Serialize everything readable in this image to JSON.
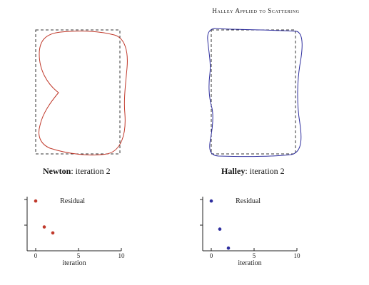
{
  "figure_title": "Halley Applied to Scattering",
  "colors": {
    "newton": "#c0392b",
    "halley": "#2e2e9e",
    "reference": "#333333",
    "axis": "#222222"
  },
  "panels": [
    {
      "method": "Newton",
      "caption_rest": ": iteration 2",
      "color_key": "newton"
    },
    {
      "method": "Halley",
      "caption_rest": ": iteration 2",
      "color_key": "halley"
    }
  ],
  "chart_data": [
    {
      "type": "scatter",
      "title": "Residual",
      "xlabel": "iteration",
      "ylabel": "",
      "xlim": [
        -1,
        10
      ],
      "x_ticks": [
        0,
        5,
        10
      ],
      "series": [
        {
          "x": [
            0,
            1,
            2
          ],
          "y": [
            0.92,
            0.44,
            0.33
          ]
        }
      ],
      "color_key": "newton"
    },
    {
      "type": "scatter",
      "title": "Residual",
      "xlabel": "iteration",
      "ylabel": "",
      "xlim": [
        -1,
        10
      ],
      "x_ticks": [
        0,
        5,
        10
      ],
      "series": [
        {
          "x": [
            0,
            1,
            2
          ],
          "y": [
            0.92,
            0.4,
            0.05
          ]
        }
      ],
      "color_key": "halley"
    }
  ]
}
